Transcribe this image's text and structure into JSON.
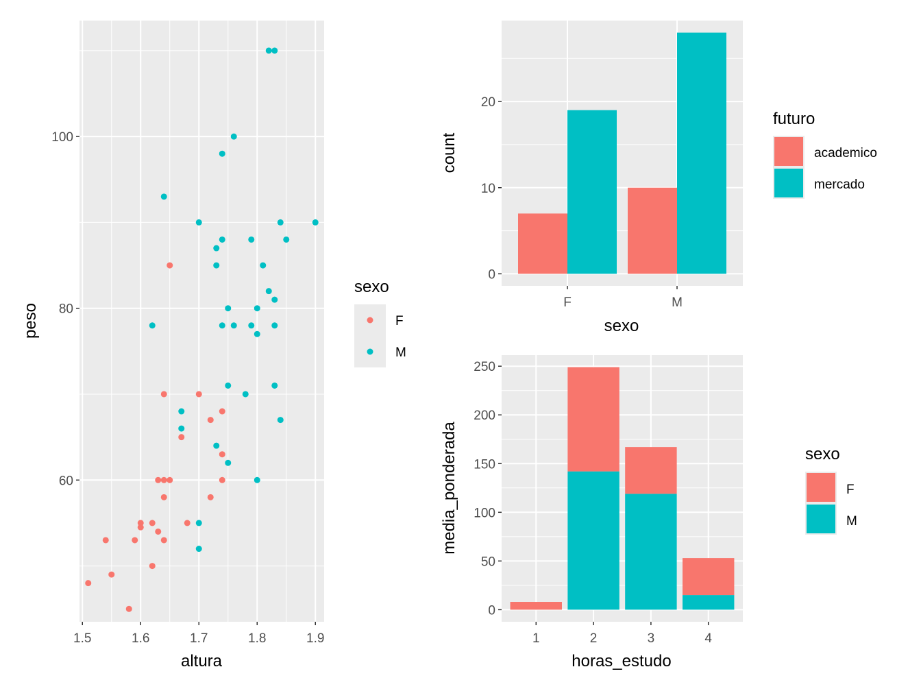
{
  "colors": {
    "F": "#F8766D",
    "M": "#00BFC4",
    "academico": "#F8766D",
    "mercado": "#00BFC4",
    "panel": "#EBEBEB",
    "grid": "#FFFFFF",
    "tick_text": "#4D4D4D",
    "tick_mark": "#333333"
  },
  "chart_data": [
    {
      "type": "scatter",
      "xlabel": "altura",
      "ylabel": "peso",
      "xlim": [
        1.495,
        1.915
      ],
      "ylim": [
        43.5,
        113.5
      ],
      "xticks": [
        1.5,
        1.6,
        1.7,
        1.8,
        1.9
      ],
      "xtick_labels": [
        "1.5",
        "1.6",
        "1.7",
        "1.8",
        "1.9"
      ],
      "yticks": [
        60,
        80,
        100
      ],
      "ytick_labels": [
        "60",
        "80",
        "100"
      ],
      "grid": true,
      "legend": {
        "title": "sexo",
        "entries": [
          "F",
          "M"
        ],
        "placement": "right"
      },
      "series": [
        {
          "name": "F",
          "points": [
            [
              1.51,
              48
            ],
            [
              1.54,
              53
            ],
            [
              1.55,
              49
            ],
            [
              1.58,
              45
            ],
            [
              1.59,
              53
            ],
            [
              1.6,
              54.5
            ],
            [
              1.6,
              55
            ],
            [
              1.62,
              50
            ],
            [
              1.62,
              55
            ],
            [
              1.63,
              54
            ],
            [
              1.63,
              60
            ],
            [
              1.64,
              60
            ],
            [
              1.64,
              58
            ],
            [
              1.64,
              53
            ],
            [
              1.64,
              70
            ],
            [
              1.65,
              60
            ],
            [
              1.65,
              85
            ],
            [
              1.67,
              65
            ],
            [
              1.68,
              55
            ],
            [
              1.7,
              70
            ],
            [
              1.72,
              58
            ],
            [
              1.72,
              67
            ],
            [
              1.74,
              68
            ],
            [
              1.74,
              63
            ],
            [
              1.74,
              60
            ]
          ]
        },
        {
          "name": "M",
          "points": [
            [
              1.62,
              78
            ],
            [
              1.64,
              93
            ],
            [
              1.67,
              68
            ],
            [
              1.67,
              66
            ],
            [
              1.7,
              90
            ],
            [
              1.7,
              55
            ],
            [
              1.7,
              52
            ],
            [
              1.73,
              87
            ],
            [
              1.73,
              85
            ],
            [
              1.73,
              64
            ],
            [
              1.74,
              88
            ],
            [
              1.74,
              78
            ],
            [
              1.74,
              98
            ],
            [
              1.75,
              80
            ],
            [
              1.75,
              71
            ],
            [
              1.75,
              62
            ],
            [
              1.76,
              100
            ],
            [
              1.76,
              78
            ],
            [
              1.78,
              70
            ],
            [
              1.79,
              88
            ],
            [
              1.79,
              78
            ],
            [
              1.8,
              80
            ],
            [
              1.8,
              77
            ],
            [
              1.8,
              60
            ],
            [
              1.81,
              85
            ],
            [
              1.82,
              110
            ],
            [
              1.82,
              82
            ],
            [
              1.83,
              110
            ],
            [
              1.83,
              81
            ],
            [
              1.83,
              78
            ],
            [
              1.83,
              71
            ],
            [
              1.84,
              90
            ],
            [
              1.84,
              67
            ],
            [
              1.85,
              88
            ],
            [
              1.9,
              90
            ]
          ]
        }
      ]
    },
    {
      "type": "bar",
      "xlabel": "sexo",
      "ylabel": "count",
      "categories": [
        "F",
        "M"
      ],
      "ylim": [
        -1.4,
        29.4
      ],
      "yticks": [
        0,
        10,
        20
      ],
      "ytick_labels": [
        "0",
        "10",
        "20"
      ],
      "grid": true,
      "legend": {
        "title": "futuro",
        "entries": [
          "academico",
          "mercado"
        ],
        "placement": "right"
      },
      "series": [
        {
          "name": "academico",
          "values": [
            7,
            10
          ]
        },
        {
          "name": "mercado",
          "values": [
            19,
            28
          ]
        }
      ]
    },
    {
      "type": "bar",
      "stacked": true,
      "xlabel": "horas_estudo",
      "ylabel": "media_ponderada",
      "categories": [
        "1",
        "2",
        "3",
        "4"
      ],
      "ylim": [
        -12.4,
        261.4
      ],
      "yticks": [
        0,
        50,
        100,
        150,
        200,
        250
      ],
      "ytick_labels": [
        "0",
        "50",
        "100",
        "150",
        "200",
        "250"
      ],
      "grid": true,
      "legend": {
        "title": "sexo",
        "entries": [
          "F",
          "M"
        ],
        "placement": "right"
      },
      "series": [
        {
          "name": "M",
          "values": [
            0,
            142,
            119,
            15
          ]
        },
        {
          "name": "F",
          "values": [
            8,
            107,
            48,
            38
          ]
        }
      ]
    }
  ]
}
